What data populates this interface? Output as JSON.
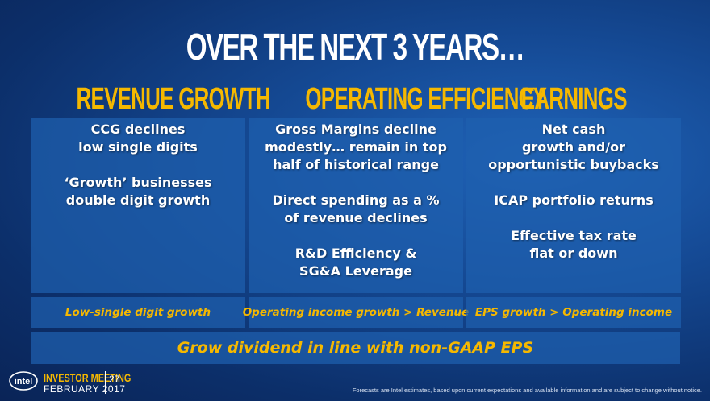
{
  "slide": {
    "title": "OVER THE NEXT 3 YEARS…",
    "columns": [
      {
        "heading": "REVENUE GROWTH",
        "lines": [
          "CCG declines",
          "low single digits",
          "",
          "‘Growth’ businesses",
          "double digit growth"
        ],
        "footer": "Low-single digit growth"
      },
      {
        "heading": "OPERATING EFFICIENCY",
        "lines": [
          "Gross Margins decline",
          "modestly… remain in top",
          "half of historical range",
          "",
          "Direct spending as a %",
          "of revenue declines",
          "",
          "R&D Efficiency &",
          "SG&A Leverage"
        ],
        "footer": "Operating income growth  > Revenue"
      },
      {
        "heading": "EARNINGS",
        "lines": [
          "Net cash",
          "growth and/or",
          "opportunistic buybacks",
          "",
          "ICAP portfolio returns",
          "",
          "Effective tax rate",
          "flat or down"
        ],
        "footer": "EPS growth > Operating income"
      }
    ],
    "banner": "Grow dividend in line with non-GAAP EPS"
  },
  "branding": {
    "logo_text": "intel",
    "event": "INVESTOR MEETING",
    "date": "FEBRUARY 2017",
    "page_number": "27"
  },
  "disclaimer": "Forecasts are Intel estimates, based upon current expectations and available information and are subject to change without notice.",
  "colors": {
    "accent": "#f5b800",
    "panel": "#1e5faf",
    "background": "#0c2f6a"
  }
}
